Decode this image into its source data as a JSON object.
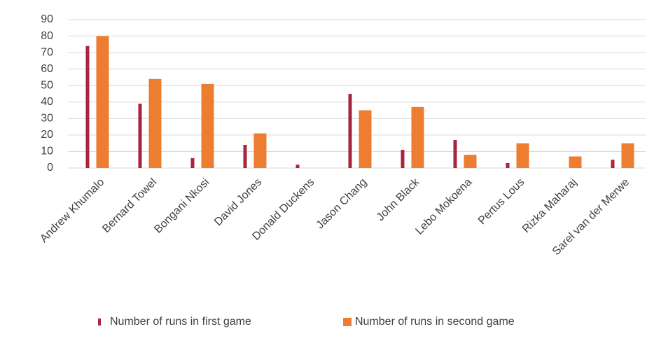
{
  "chart_data": {
    "type": "bar",
    "categories": [
      "Andrew Khumalo",
      "Bernard Towel",
      "Bongani Nkosi",
      "David Jones",
      "Donald Duckens",
      "Jason Chang",
      "John Black",
      "Lebo Mokoena",
      "Pertus Lous",
      "Rizka Maharaj",
      "Sarel van der Merwe"
    ],
    "series": [
      {
        "name": "Number of runs in first game",
        "color": "#a8243f",
        "values": [
          74,
          39,
          6,
          14,
          2,
          45,
          11,
          17,
          3,
          0,
          5
        ]
      },
      {
        "name": "Number of runs in second game",
        "color": "#ed7d31",
        "values": [
          80,
          54,
          51,
          21,
          0,
          35,
          37,
          8,
          15,
          7,
          15
        ]
      }
    ],
    "ylim": [
      0,
      90
    ],
    "yticks": [
      0,
      10,
      20,
      30,
      40,
      50,
      60,
      70,
      80,
      90
    ],
    "grid": true,
    "legend": "bottom"
  }
}
